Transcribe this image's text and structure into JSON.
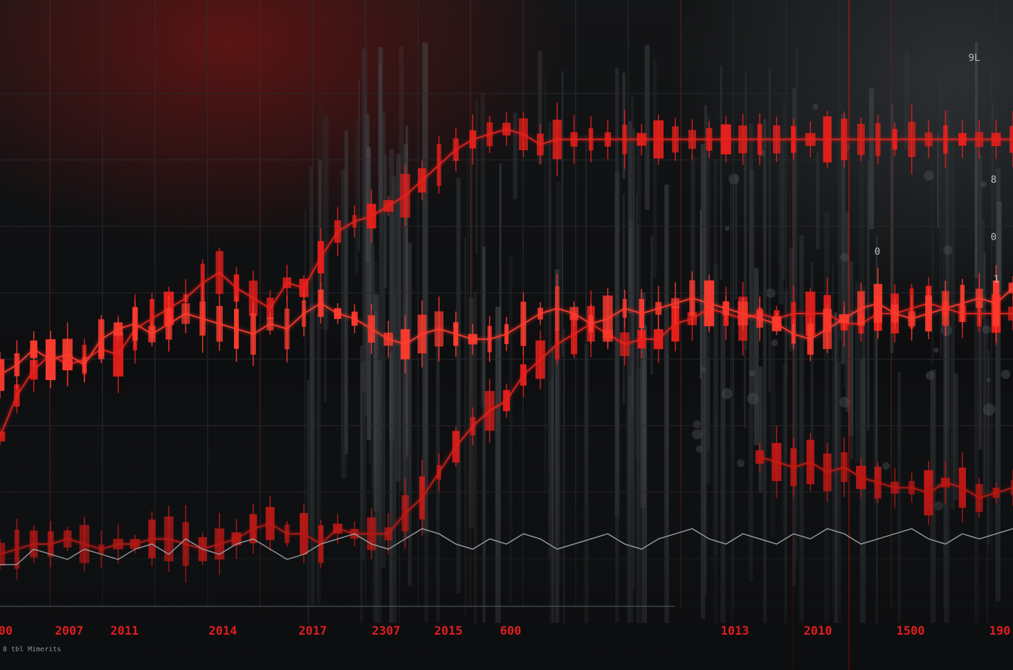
{
  "chart_data": {
    "type": "line",
    "style": "candlestick-overlay",
    "title": "",
    "xlabel": "",
    "ylabel": "",
    "grid": true,
    "x": [
      0,
      1,
      2,
      3,
      4,
      5,
      6,
      7,
      8,
      9,
      10,
      11,
      12,
      13,
      14,
      15,
      16,
      17,
      18,
      19,
      20,
      21,
      22,
      23,
      24,
      25,
      26,
      27,
      28,
      29,
      30,
      31,
      32,
      33,
      34,
      35,
      36,
      37,
      38,
      39,
      40,
      41,
      42,
      43,
      44,
      45,
      46,
      47,
      48,
      49,
      50,
      51,
      52,
      53,
      54,
      55,
      56,
      57,
      58,
      59,
      60
    ],
    "xlim": [
      0,
      60
    ],
    "ylim": [
      0,
      100
    ],
    "series": [
      {
        "values": [
          31,
          39,
          44,
          47,
          45,
          46,
          48,
          47,
          52,
          54,
          56,
          58,
          61,
          63,
          60,
          58,
          56,
          61,
          60,
          66,
          71,
          73,
          74,
          76,
          78,
          81,
          84,
          87,
          89,
          90,
          91,
          90,
          88,
          89,
          89,
          89,
          89,
          89,
          89,
          89,
          89,
          89,
          89,
          89,
          89,
          89,
          89,
          89,
          89,
          89,
          89,
          89,
          89,
          89,
          89,
          89,
          89,
          89,
          89,
          89,
          89
        ],
        "color": "#e8201c"
      },
      {
        "values": [
          8,
          9,
          10,
          10,
          11,
          10,
          9,
          10,
          10,
          11,
          11,
          10,
          9,
          10,
          11,
          13,
          14,
          12,
          12,
          10,
          13,
          12,
          12,
          12,
          16,
          19,
          24,
          29,
          33,
          36,
          38,
          43,
          46,
          49,
          51,
          53,
          51,
          49,
          50,
          50,
          53,
          54,
          56,
          55,
          54,
          55,
          54,
          55,
          55,
          55,
          53,
          53,
          55,
          55,
          56,
          57,
          56,
          55,
          55,
          55,
          55
        ],
        "color": "#e8201c"
      },
      {
        "values": [
          43,
          45,
          48,
          46,
          47,
          45,
          50,
          52,
          53,
          51,
          53,
          55,
          54,
          53,
          52,
          51,
          53,
          52,
          55,
          57,
          55,
          54,
          52,
          50,
          49,
          51,
          52,
          51,
          50,
          50,
          51,
          53,
          55,
          56,
          55,
          53,
          54,
          56,
          55,
          56,
          57,
          58,
          57,
          56,
          55,
          54,
          53,
          51,
          50,
          52,
          54,
          56,
          57,
          55,
          54,
          55,
          56,
          57,
          58,
          57,
          60
        ],
        "color": "#ff3b2e"
      },
      {
        "values": [
          null,
          null,
          null,
          null,
          null,
          null,
          null,
          null,
          null,
          null,
          null,
          null,
          null,
          null,
          null,
          null,
          null,
          null,
          null,
          null,
          null,
          null,
          null,
          null,
          null,
          null,
          null,
          null,
          null,
          null,
          null,
          null,
          null,
          null,
          null,
          null,
          null,
          null,
          null,
          null,
          null,
          null,
          null,
          null,
          null,
          27,
          26,
          25,
          26,
          24,
          25,
          23,
          22,
          21,
          21,
          20,
          22,
          21,
          19,
          20,
          21
        ],
        "color": "#d61b18"
      },
      {
        "values": [
          6,
          6,
          9,
          8,
          7,
          9,
          8,
          7,
          9,
          10,
          8,
          11,
          9,
          8,
          10,
          11,
          9,
          7,
          8,
          10,
          11,
          12,
          10,
          9,
          11,
          13,
          12,
          10,
          9,
          11,
          10,
          12,
          11,
          9,
          10,
          11,
          12,
          10,
          9,
          11,
          12,
          13,
          11,
          10,
          12,
          11,
          10,
          12,
          11,
          13,
          12,
          10,
          11,
          12,
          13,
          11,
          10,
          12,
          11,
          12,
          13
        ],
        "color": "#9aa0a6"
      }
    ],
    "tick_labels": [
      "00",
      "2007",
      "2011",
      "2014",
      "2017",
      "2307",
      "2015",
      "600",
      "1013",
      "2010",
      "1500",
      "190"
    ],
    "right_labels": [
      "9L",
      "8",
      "0",
      "1",
      "0"
    ],
    "footnote": "8 tbl Mimerits"
  }
}
